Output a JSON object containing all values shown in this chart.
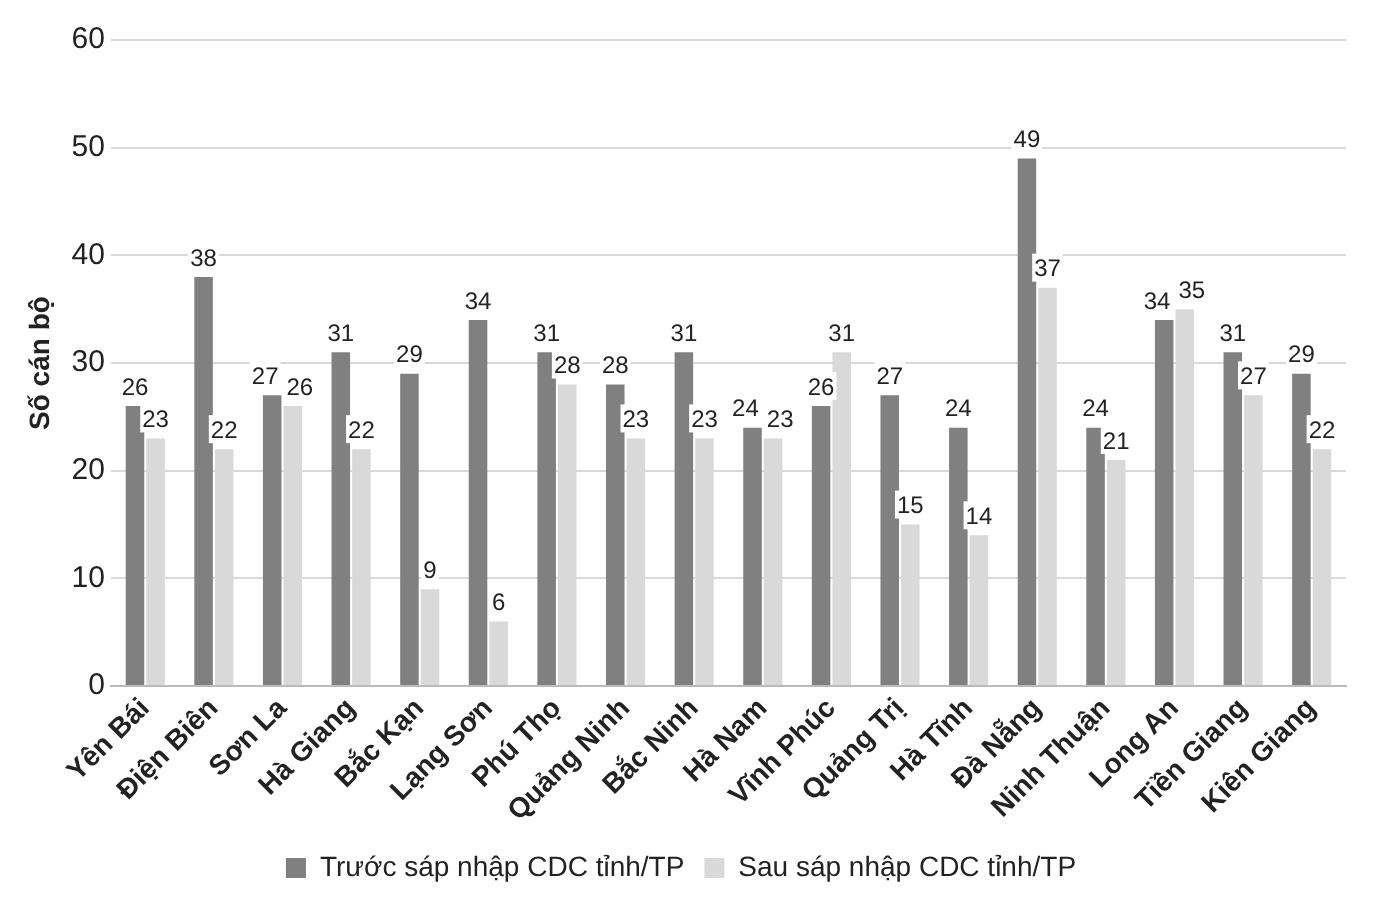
{
  "chart_data": {
    "type": "bar",
    "ylabel": "Số cán bộ",
    "categories": [
      "Yên Bái",
      "Điện Biên",
      "Sơn La",
      "Hà Giang",
      "Bắc Kạn",
      "Lạng Sơn",
      "Phú Thọ",
      "Quảng Ninh",
      "Bắc Ninh",
      "Hà Nam",
      "Vĩnh Phúc",
      "Quảng Trị",
      "Hà Tĩnh",
      "Đà Nẵng",
      "Ninh Thuận",
      "Long An",
      "Tiền Giang",
      "Kiên Giang"
    ],
    "series": [
      {
        "name": "Trước sáp nhập CDC tỉnh/TP",
        "color": "#808080",
        "values": [
          26,
          38,
          27,
          31,
          29,
          34,
          31,
          28,
          31,
          24,
          26,
          27,
          24,
          49,
          24,
          34,
          31,
          29
        ]
      },
      {
        "name": "Sau sáp nhập CDC tỉnh/TP",
        "color": "#d9d9d9",
        "values": [
          23,
          22,
          26,
          22,
          9,
          6,
          28,
          23,
          23,
          23,
          31,
          15,
          14,
          37,
          21,
          35,
          27,
          22
        ]
      }
    ],
    "ylim": [
      0,
      60
    ],
    "yticks": [
      0,
      10,
      20,
      30,
      40,
      50,
      60
    ],
    "grid": "y",
    "legend": "bottom",
    "data_labels": true
  }
}
